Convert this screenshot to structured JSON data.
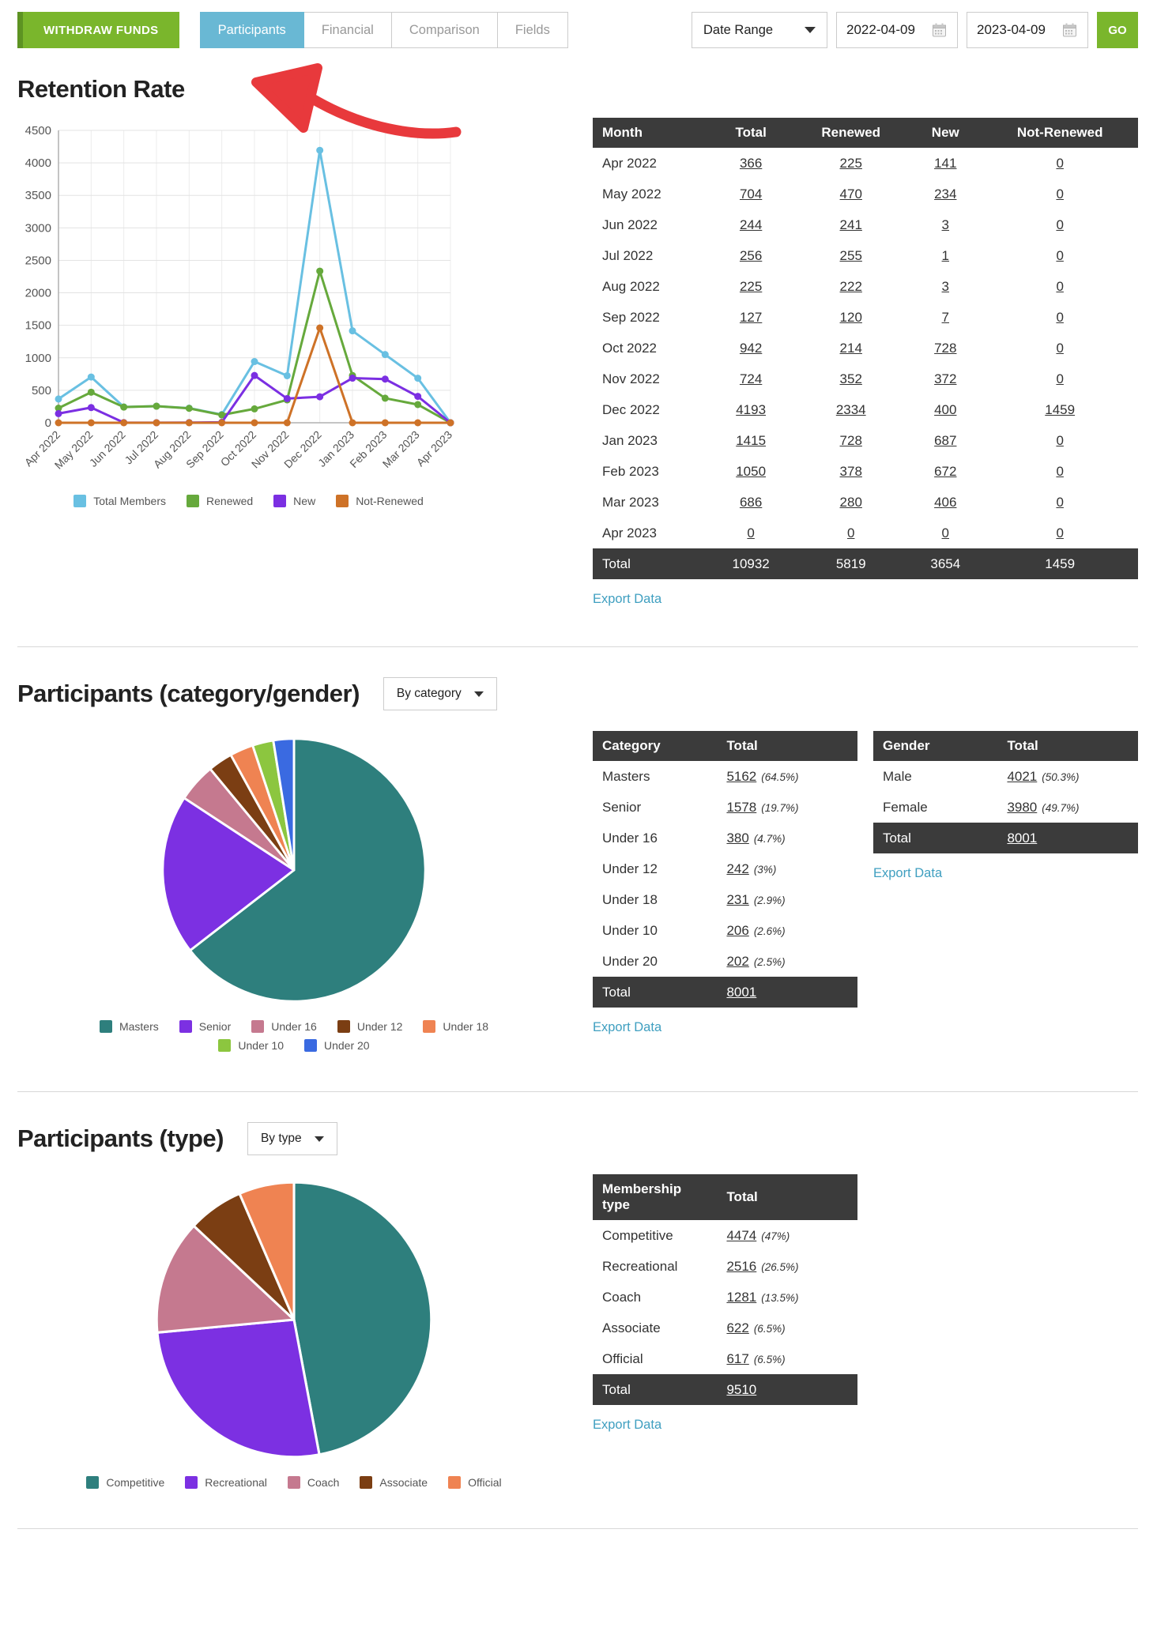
{
  "topbar": {
    "withdraw_label": "WITHDRAW FUNDS",
    "tabs": [
      {
        "label": "Participants",
        "active": true
      },
      {
        "label": "Financial",
        "active": false
      },
      {
        "label": "Comparison",
        "active": false
      },
      {
        "label": "Fields",
        "active": false
      }
    ],
    "date_range_label": "Date Range",
    "date_from": "2022-04-09",
    "date_to": "2023-04-09",
    "go_label": "GO"
  },
  "colors": {
    "accent_green": "#7ab62c",
    "accent_green_dark": "#5d9322",
    "active_tab_blue": "#69b8d4",
    "table_header_bg": "#3b3b3b",
    "export_link": "#3f9fc0",
    "arrow_red": "#e8393c"
  },
  "retention": {
    "title": "Retention Rate",
    "export_label": "Export Data",
    "table": {
      "columns": [
        "Month",
        "Total",
        "Renewed",
        "New",
        "Not-Renewed"
      ],
      "rows": [
        [
          "Apr 2022",
          "366",
          "225",
          "141",
          "0"
        ],
        [
          "May 2022",
          "704",
          "470",
          "234",
          "0"
        ],
        [
          "Jun 2022",
          "244",
          "241",
          "3",
          "0"
        ],
        [
          "Jul 2022",
          "256",
          "255",
          "1",
          "0"
        ],
        [
          "Aug 2022",
          "225",
          "222",
          "3",
          "0"
        ],
        [
          "Sep 2022",
          "127",
          "120",
          "7",
          "0"
        ],
        [
          "Oct 2022",
          "942",
          "214",
          "728",
          "0"
        ],
        [
          "Nov 2022",
          "724",
          "352",
          "372",
          "0"
        ],
        [
          "Dec 2022",
          "4193",
          "2334",
          "400",
          "1459"
        ],
        [
          "Jan 2023",
          "1415",
          "728",
          "687",
          "0"
        ],
        [
          "Feb 2023",
          "1050",
          "378",
          "672",
          "0"
        ],
        [
          "Mar 2023",
          "686",
          "280",
          "406",
          "0"
        ],
        [
          "Apr 2023",
          "0",
          "0",
          "0",
          "0"
        ]
      ],
      "total_row": [
        "Total",
        "10932",
        "5819",
        "3654",
        "1459"
      ]
    }
  },
  "category_section": {
    "title": "Participants (category/gender)",
    "dropdown_value": "By category",
    "export_label": "Export Data",
    "category_table": {
      "columns": [
        "Category",
        "Total"
      ],
      "rows": [
        [
          "Masters",
          "5162",
          "(64.5%)"
        ],
        [
          "Senior",
          "1578",
          "(19.7%)"
        ],
        [
          "Under 16",
          "380",
          "(4.7%)"
        ],
        [
          "Under 12",
          "242",
          "(3%)"
        ],
        [
          "Under 18",
          "231",
          "(2.9%)"
        ],
        [
          "Under 10",
          "206",
          "(2.6%)"
        ],
        [
          "Under 20",
          "202",
          "(2.5%)"
        ]
      ],
      "total_row": [
        "Total",
        "8001"
      ]
    },
    "gender_table": {
      "columns": [
        "Gender",
        "Total"
      ],
      "rows": [
        [
          "Male",
          "4021",
          "(50.3%)"
        ],
        [
          "Female",
          "3980",
          "(49.7%)"
        ]
      ],
      "total_row": [
        "Total",
        "8001"
      ]
    }
  },
  "type_section": {
    "title": "Participants (type)",
    "dropdown_value": "By type",
    "export_label": "Export Data",
    "table": {
      "columns": [
        "Membership type",
        "Total"
      ],
      "rows": [
        [
          "Competitive",
          "4474",
          "(47%)"
        ],
        [
          "Recreational",
          "2516",
          "(26.5%)"
        ],
        [
          "Coach",
          "1281",
          "(13.5%)"
        ],
        [
          "Associate",
          "622",
          "(6.5%)"
        ],
        [
          "Official",
          "617",
          "(6.5%)"
        ]
      ],
      "total_row": [
        "Total",
        "9510"
      ]
    }
  },
  "chart_data": [
    {
      "type": "line",
      "title": "Retention Rate",
      "x": [
        "Apr 2022",
        "May 2022",
        "Jun 2022",
        "Jul 2022",
        "Aug 2022",
        "Sep 2022",
        "Oct 2022",
        "Nov 2022",
        "Dec 2022",
        "Jan 2023",
        "Feb 2023",
        "Mar 2023",
        "Apr 2023"
      ],
      "series": [
        {
          "name": "Total Members",
          "color": "#69c0e2",
          "values": [
            366,
            704,
            244,
            256,
            225,
            127,
            942,
            724,
            4193,
            1415,
            1050,
            686,
            0
          ]
        },
        {
          "name": "Renewed",
          "color": "#66a93c",
          "values": [
            225,
            470,
            241,
            255,
            222,
            120,
            214,
            352,
            2334,
            728,
            378,
            280,
            0
          ]
        },
        {
          "name": "New",
          "color": "#7b2fe2",
          "values": [
            141,
            234,
            3,
            1,
            3,
            7,
            728,
            372,
            400,
            687,
            672,
            406,
            0
          ]
        },
        {
          "name": "Not-Renewed",
          "color": "#ce7227",
          "values": [
            0,
            0,
            0,
            0,
            0,
            0,
            0,
            0,
            1459,
            0,
            0,
            0,
            0
          ]
        }
      ],
      "ylim": [
        0,
        4500
      ],
      "ytick_step": 500,
      "grid": true,
      "legend_position": "bottom"
    },
    {
      "type": "pie",
      "title": "Participants (category/gender)",
      "labels": [
        "Masters",
        "Senior",
        "Under 16",
        "Under 12",
        "Under 18",
        "Under 10",
        "Under 20"
      ],
      "values": [
        5162,
        1578,
        380,
        242,
        231,
        206,
        202
      ],
      "percents": [
        "64.5%",
        "19.7%",
        "4.7%",
        "3%",
        "2.9%",
        "2.6%",
        "2.5%"
      ],
      "colors": [
        "#2e7f7d",
        "#7c30e2",
        "#c5798f",
        "#7b3e13",
        "#ef8352",
        "#8cc63f",
        "#3a6ae1"
      ],
      "legend_position": "bottom"
    },
    {
      "type": "pie",
      "title": "Participants (type)",
      "labels": [
        "Competitive",
        "Recreational",
        "Coach",
        "Associate",
        "Official"
      ],
      "values": [
        4474,
        2516,
        1281,
        622,
        617
      ],
      "percents": [
        "47%",
        "26.5%",
        "13.5%",
        "6.5%",
        "6.5%"
      ],
      "colors": [
        "#2e7f7d",
        "#7c30e2",
        "#c5798f",
        "#7b3e13",
        "#ef8352"
      ],
      "legend_position": "bottom"
    }
  ]
}
